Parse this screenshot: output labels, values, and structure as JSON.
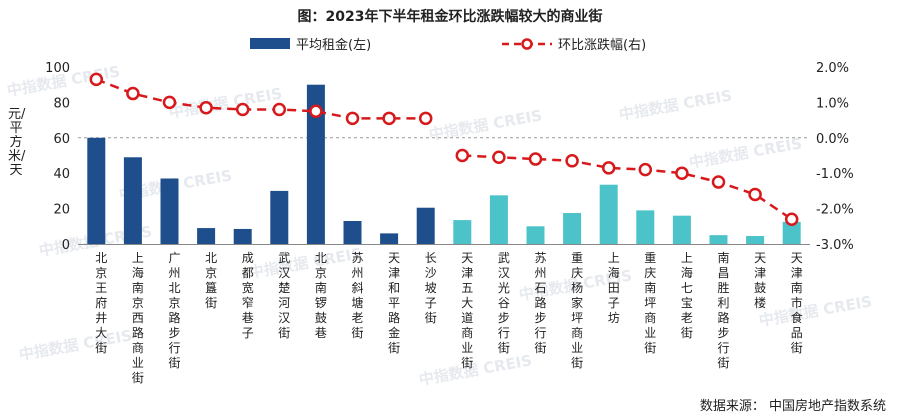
{
  "chart_data": {
    "type": "bar",
    "title": "图：2023年下半年租金环比涨跌幅较大的商业街",
    "ylabel": "元/平方米/天",
    "ylim": [
      0,
      100
    ],
    "yticks": [
      0,
      20,
      40,
      60,
      80,
      100
    ],
    "y2lim": [
      -3.0,
      2.0
    ],
    "y2ticks": [
      "2.0%",
      "1.0%",
      "0.0%",
      "-1.0%",
      "-2.0%",
      "-3.0%"
    ],
    "y2tick_values": [
      2.0,
      1.0,
      0.0,
      -1.0,
      -2.0,
      -3.0
    ],
    "categories": [
      "北京王府井大街",
      "上海南京西路商业街",
      "广州北京路步行街",
      "北京簋街",
      "成都宽窄巷子",
      "武汉楚河汉街",
      "北京南锣鼓巷",
      "苏州斜塘老街",
      "天津和平路金街",
      "长沙坡子街",
      "天津五大道商业街",
      "武汉光谷步行街",
      "苏州石路步行街",
      "重庆杨家坪商业街",
      "上海田子坊",
      "重庆南坪商业街",
      "上海七宝老街",
      "南昌胜利路步行街",
      "天津鼓楼",
      "天津南市食品街"
    ],
    "series": [
      {
        "name": "平均租金(左)",
        "type": "bar",
        "axis": "left",
        "values": [
          60,
          49,
          37,
          9,
          8.5,
          30,
          90,
          13,
          6,
          20.5,
          13.5,
          27.5,
          10,
          17.5,
          33.5,
          19,
          16,
          5,
          4.5,
          12.5
        ],
        "colors": [
          "#1f4e8c",
          "#1f4e8c",
          "#1f4e8c",
          "#1f4e8c",
          "#1f4e8c",
          "#1f4e8c",
          "#1f4e8c",
          "#1f4e8c",
          "#1f4e8c",
          "#1f4e8c",
          "#4cc3c8",
          "#4cc3c8",
          "#4cc3c8",
          "#4cc3c8",
          "#4cc3c8",
          "#4cc3c8",
          "#4cc3c8",
          "#4cc3c8",
          "#4cc3c8",
          "#4cc3c8"
        ]
      },
      {
        "name": "环比涨跌幅(右)",
        "type": "line",
        "axis": "right",
        "values": [
          1.65,
          1.25,
          1.0,
          0.85,
          0.8,
          0.8,
          0.75,
          0.55,
          0.55,
          0.55,
          -0.5,
          -0.55,
          -0.6,
          -0.65,
          -0.85,
          -0.9,
          -1.0,
          -1.25,
          -1.6,
          -2.3
        ],
        "color": "#d7191c"
      }
    ],
    "source": "数据来源：  中国房地产指数系统",
    "watermark": "中指数据 CREIS",
    "colors": {
      "bar_up": "#1f4e8c",
      "bar_down": "#4cc3c8",
      "line": "#d7191c"
    }
  }
}
